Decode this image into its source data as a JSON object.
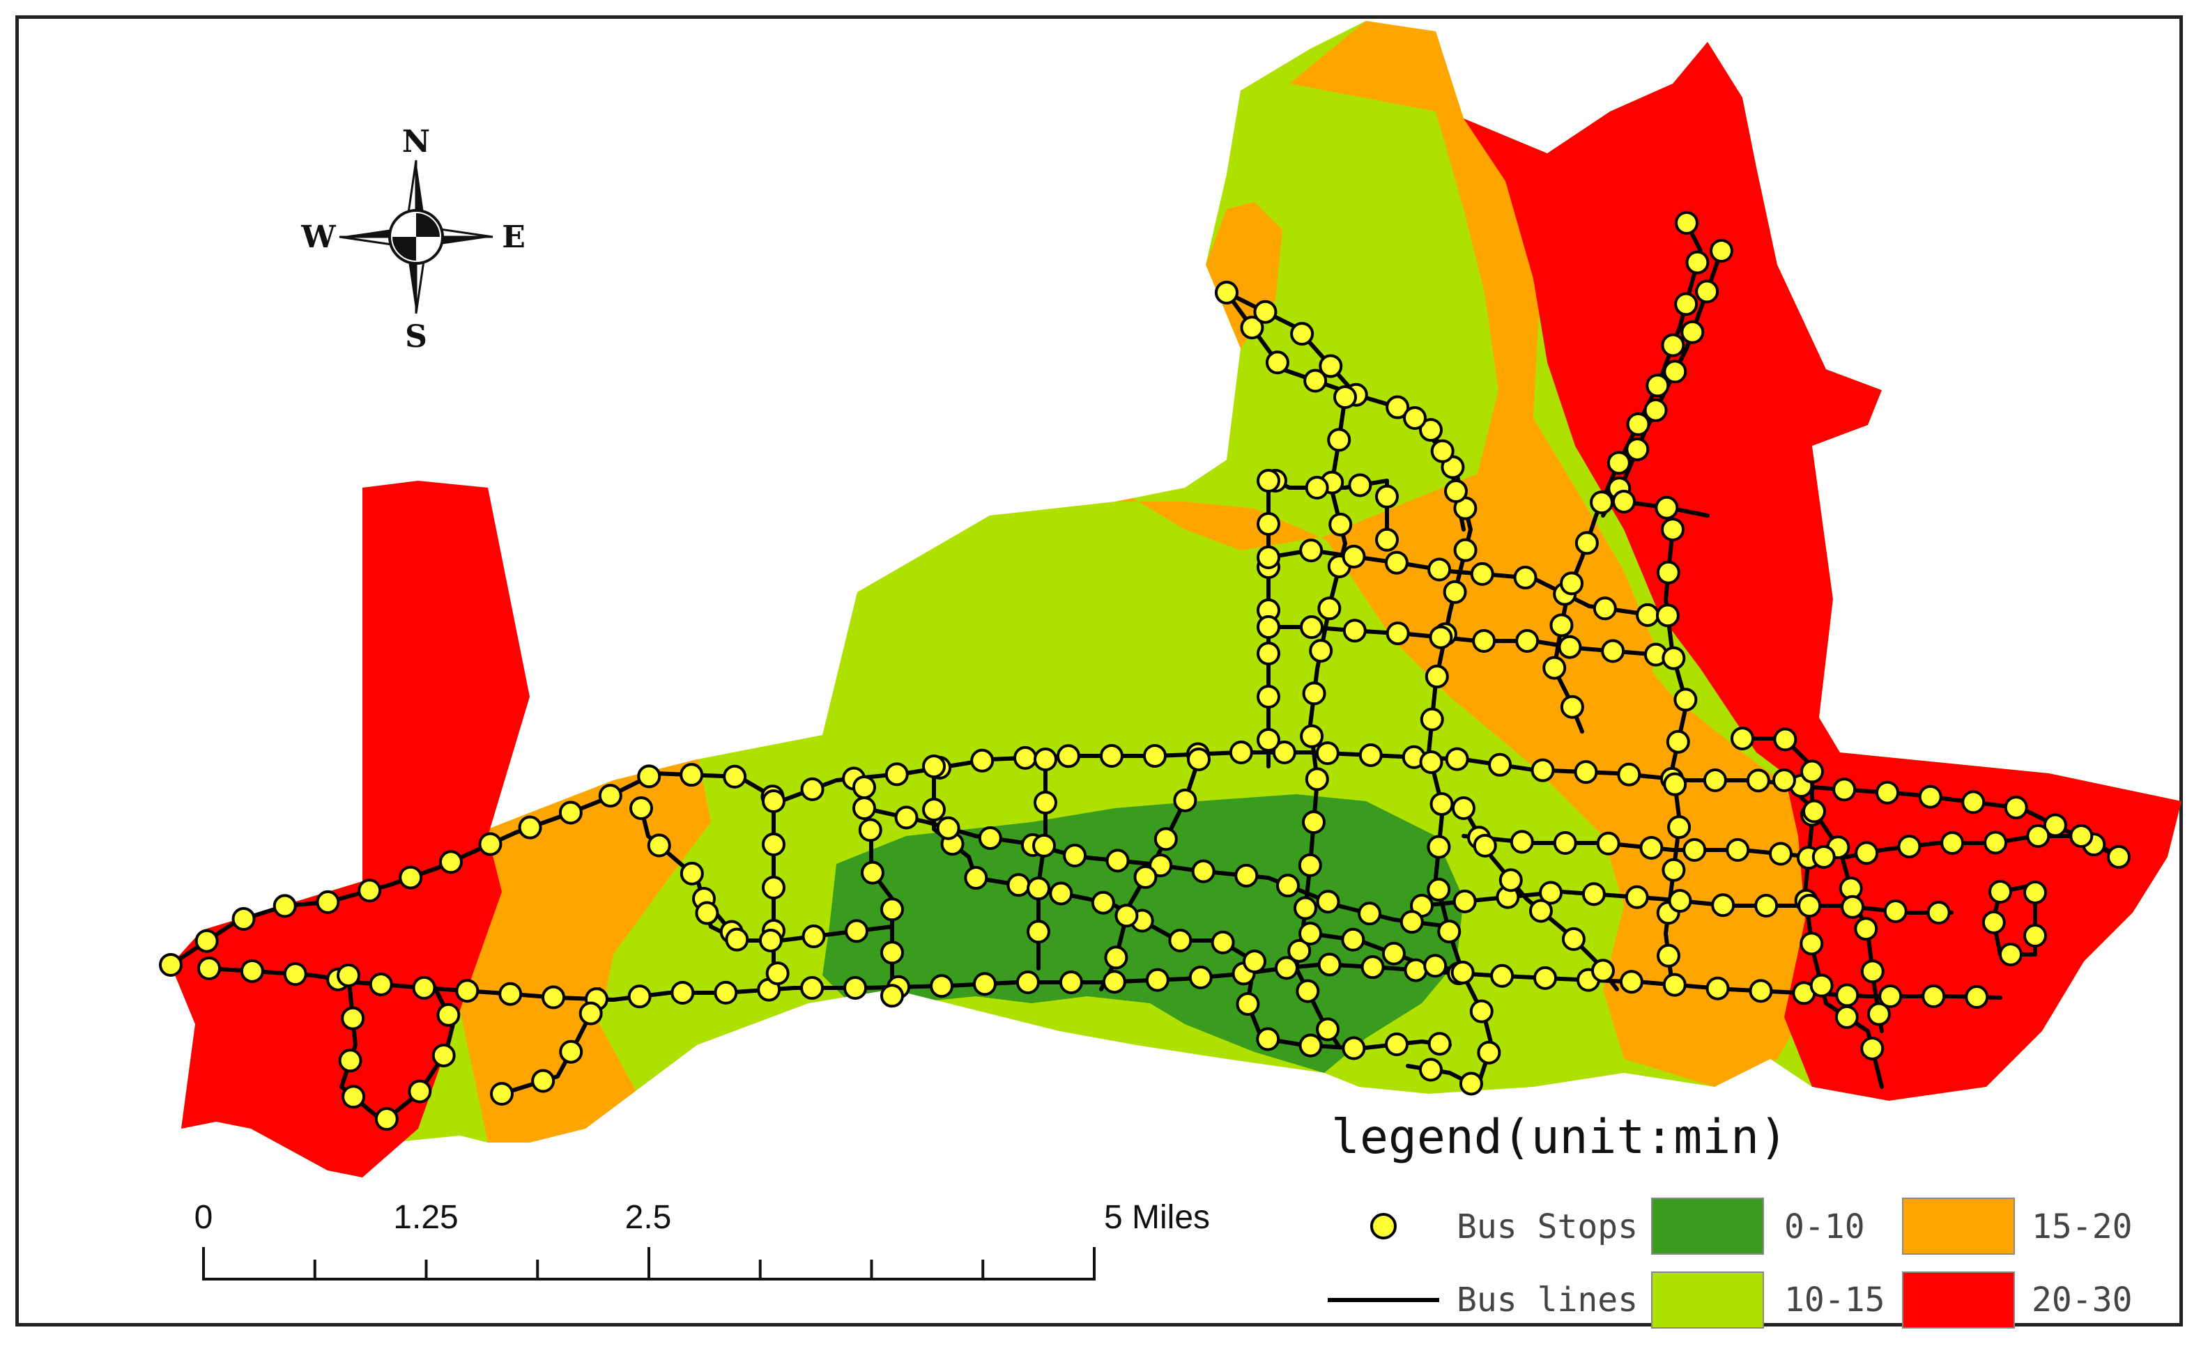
{
  "compass": {
    "north": "N",
    "south": "S",
    "east": "E",
    "west": "W"
  },
  "scale_bar": {
    "labels": [
      "0",
      "1.25",
      "2.5",
      "5 Miles"
    ]
  },
  "legend": {
    "title": "legend(unit:min)",
    "stops_label": "Bus Stops",
    "lines_label": "Bus lines",
    "classes": [
      {
        "label": "0-10",
        "color": "#3a9c1e"
      },
      {
        "label": "10-15",
        "color": "#aee000"
      },
      {
        "label": "15-20",
        "color": "#ffa500"
      },
      {
        "label": "20-30",
        "color": "#ff0000"
      }
    ]
  },
  "colors": {
    "bus_stop": "#ffff33",
    "bus_line": "#000000"
  }
}
